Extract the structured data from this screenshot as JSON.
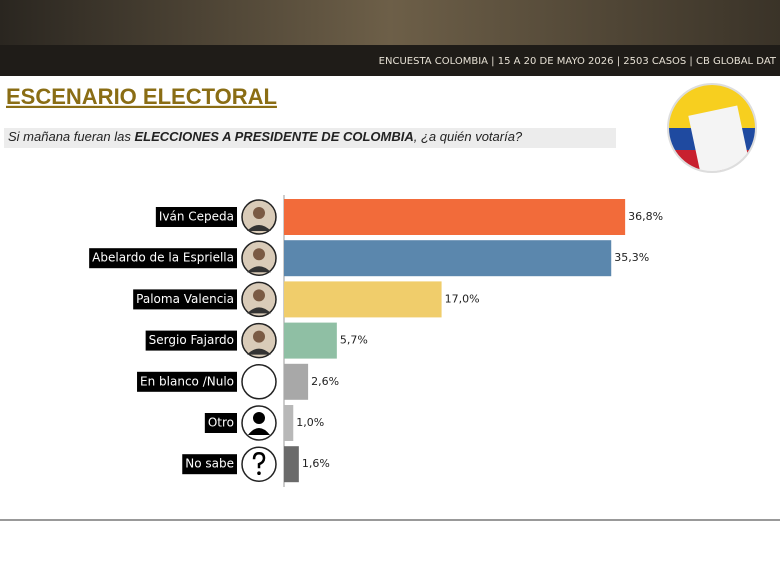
{
  "header": {
    "survey": "ENCUESTA COLOMBIA | 15 A 20 DE MAYO 2026 | 2503 CASOS | CB GLOBAL DAT"
  },
  "chart_data": {
    "type": "bar",
    "orientation": "horizontal",
    "title": "ESCENARIO ELECTORAL",
    "subtitle": {
      "before": "Si mañana fueran las ",
      "bold": "ELECCIONES A PRESIDENTE DE COLOMBIA",
      "after": ", ¿a quién votaría?"
    },
    "categories": [
      "Iván Cepeda",
      "Abelardo de la Espriella",
      "Paloma Valencia",
      "Sergio Fajardo",
      "En blanco /Nulo",
      "Otro",
      "No sabe"
    ],
    "values": [
      36.8,
      35.3,
      17.0,
      5.7,
      2.6,
      1.0,
      1.6
    ],
    "value_labels": [
      "36,8%",
      "35,3%",
      "17,0%",
      "5,7%",
      "2,6%",
      "1,0%",
      "1,6%"
    ],
    "colors": [
      "#f26b3a",
      "#5b87ad",
      "#f0cd6b",
      "#8fbfa4",
      "#a8a8a8",
      "#b8b8b8",
      "#6a6a6a"
    ]
  }
}
